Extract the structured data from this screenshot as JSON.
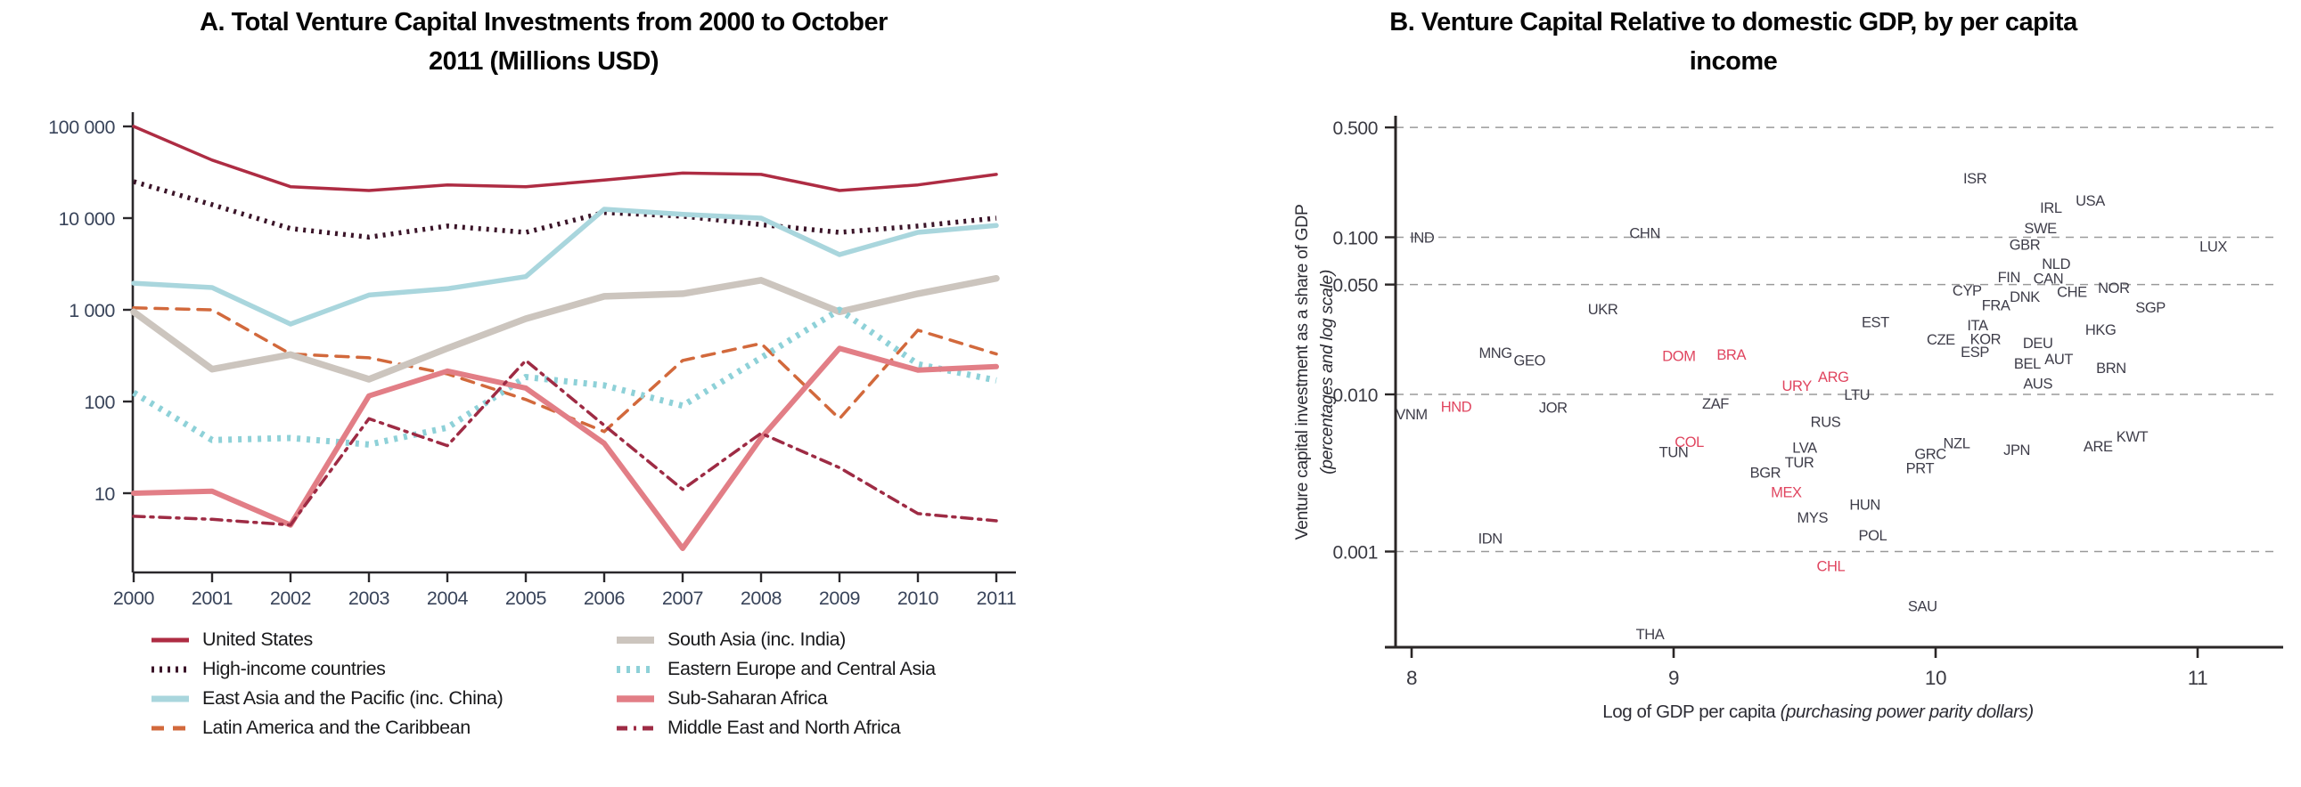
{
  "panel_a": {
    "title_line1": "A. Total Venture Capital Investments from 2000 to October",
    "title_line2": "2011 (Millions USD)",
    "y_axis": {
      "tick_labels": [
        "100 000",
        "10 000",
        "1 000",
        "100",
        "10"
      ],
      "tick_values": [
        100000,
        10000,
        1000,
        100,
        10
      ]
    },
    "x_axis": {
      "tick_labels": [
        "2000",
        "2001",
        "2002",
        "2003",
        "2004",
        "2005",
        "2006",
        "2007",
        "2008",
        "2009",
        "2010",
        "2011"
      ]
    },
    "style": {
      "axis_color": "#2a282b",
      "tick_text_color": "#39445a",
      "legend_text_color": "#19191b"
    },
    "chart_data": {
      "type": "line",
      "y_scale": "log",
      "ylim": [
        2,
        130000
      ],
      "x": [
        2000,
        2001,
        2002,
        2003,
        2004,
        2005,
        2006,
        2007,
        2008,
        2009,
        2010,
        2011
      ],
      "series": [
        {
          "name": "United States",
          "color": "#ae2c43",
          "dash": "solid",
          "width": 3.5,
          "values": [
            100000,
            43000,
            22000,
            20000,
            23000,
            22000,
            26000,
            31000,
            30000,
            20000,
            23000,
            30000
          ]
        },
        {
          "name": "High-income countries",
          "color": "#3a1428",
          "dash": "dotted",
          "width": 5.5,
          "values": [
            25000,
            14000,
            7700,
            6200,
            8200,
            7000,
            11500,
            10500,
            8500,
            7000,
            8200,
            10000
          ]
        },
        {
          "name": "East Asia and the Pacific (inc. China)",
          "color": "#a9d6dd",
          "dash": "solid",
          "width": 5.5,
          "values": [
            1950,
            1750,
            700,
            1450,
            1700,
            2300,
            12500,
            11000,
            10000,
            4000,
            7000,
            8300
          ]
        },
        {
          "name": "Latin America and the Caribbean",
          "color": "#d2693c",
          "dash": "dashed",
          "width": 3.5,
          "values": [
            1050,
            1000,
            330,
            300,
            200,
            105,
            47,
            280,
            430,
            65,
            600,
            330
          ]
        },
        {
          "name": "South Asia (inc. India)",
          "color": "#ccc5be",
          "dash": "solid",
          "width": 7.5,
          "values": [
            950,
            225,
            325,
            175,
            380,
            800,
            1400,
            1500,
            2100,
            950,
            1500,
            2200
          ]
        },
        {
          "name": "Eastern Europe and Central Asia",
          "color": "#8ed1d8",
          "dash": "dotted",
          "width": 7,
          "values": [
            125,
            38,
            40,
            34,
            52,
            185,
            150,
            90,
            300,
            1000,
            255,
            170
          ]
        },
        {
          "name": "Sub-Saharan Africa",
          "color": "#e27e86",
          "dash": "solid",
          "width": 6,
          "values": [
            10,
            10.5,
            4.5,
            115,
            215,
            140,
            35,
            2.5,
            40,
            380,
            220,
            240
          ]
        },
        {
          "name": "Middle East and North Africa",
          "color": "#9e2b44",
          "dash": "dashdot",
          "width": 3.5,
          "values": [
            5.6,
            5.2,
            4.5,
            65,
            33,
            280,
            55,
            11,
            45,
            19,
            6,
            5
          ]
        }
      ]
    },
    "legend": {
      "columns": [
        [
          0,
          1,
          2,
          3
        ],
        [
          4,
          5,
          6,
          7
        ]
      ]
    }
  },
  "panel_b": {
    "title_line1": "B. Venture Capital Relative to domestic GDP, by per capita",
    "title_line2": "income",
    "y_axis": {
      "label": "Venture capital investment as a share of GDP",
      "label_italic": "(percentages and log scale)",
      "tick_labels": [
        "0.500",
        "0.100",
        "0.050",
        "0.010",
        "0.001"
      ],
      "tick_values": [
        0.5,
        0.1,
        0.05,
        0.01,
        0.001
      ]
    },
    "x_axis": {
      "label": "Log of GDP per capita",
      "label_italic": "(purchasing power parity dollars)",
      "tick_labels": [
        "8",
        "9",
        "10",
        "11"
      ],
      "tick_values": [
        8,
        9,
        10,
        11
      ]
    },
    "style": {
      "label_color": "#3e3d49",
      "highlight_color": "#e0455f",
      "grid_color": "#9a9a9a",
      "axis_color": "#2a2626",
      "tick_text_color": "#3a3a42"
    },
    "chart_data": {
      "type": "scatter",
      "x_scale": "linear",
      "y_scale": "log",
      "x_range": [
        8,
        11.3
      ],
      "y_range": [
        0.0002,
        0.6
      ],
      "points": [
        {
          "code": "IND",
          "x": 8.04,
          "y": 0.1,
          "highlight": false
        },
        {
          "code": "CHN",
          "x": 8.89,
          "y": 0.107,
          "highlight": false
        },
        {
          "code": "UKR",
          "x": 8.73,
          "y": 0.035,
          "highlight": false
        },
        {
          "code": "MNG",
          "x": 8.32,
          "y": 0.0185,
          "highlight": false
        },
        {
          "code": "GEO",
          "x": 8.45,
          "y": 0.0165,
          "highlight": false
        },
        {
          "code": "VNM",
          "x": 8.0,
          "y": 0.0075,
          "highlight": false
        },
        {
          "code": "HND",
          "x": 8.17,
          "y": 0.0084,
          "highlight": true
        },
        {
          "code": "JOR",
          "x": 8.54,
          "y": 0.0083,
          "highlight": false
        },
        {
          "code": "IDN",
          "x": 8.3,
          "y": 0.00122,
          "highlight": false
        },
        {
          "code": "THA",
          "x": 8.91,
          "y": 0.0003,
          "highlight": false
        },
        {
          "code": "DOM",
          "x": 9.02,
          "y": 0.0176,
          "highlight": true
        },
        {
          "code": "BRA",
          "x": 9.22,
          "y": 0.018,
          "highlight": true
        },
        {
          "code": "ZAF",
          "x": 9.16,
          "y": 0.0088,
          "highlight": false
        },
        {
          "code": "COL",
          "x": 9.06,
          "y": 0.005,
          "highlight": true
        },
        {
          "code": "TUN",
          "x": 9.0,
          "y": 0.0043,
          "highlight": false
        },
        {
          "code": "URY",
          "x": 9.47,
          "y": 0.0114,
          "highlight": true
        },
        {
          "code": "ARG",
          "x": 9.61,
          "y": 0.013,
          "highlight": true
        },
        {
          "code": "LTU",
          "x": 9.7,
          "y": 0.01,
          "highlight": false
        },
        {
          "code": "RUS",
          "x": 9.58,
          "y": 0.0067,
          "highlight": false
        },
        {
          "code": "LVA",
          "x": 9.5,
          "y": 0.0046,
          "highlight": false
        },
        {
          "code": "TUR",
          "x": 9.48,
          "y": 0.0037,
          "highlight": false
        },
        {
          "code": "BGR",
          "x": 9.35,
          "y": 0.0032,
          "highlight": false
        },
        {
          "code": "MEX",
          "x": 9.43,
          "y": 0.0024,
          "highlight": true
        },
        {
          "code": "MYS",
          "x": 9.53,
          "y": 0.00165,
          "highlight": false
        },
        {
          "code": "HUN",
          "x": 9.73,
          "y": 0.002,
          "highlight": false
        },
        {
          "code": "POL",
          "x": 9.76,
          "y": 0.00127,
          "highlight": false
        },
        {
          "code": "CHL",
          "x": 9.6,
          "y": 0.00081,
          "highlight": true
        },
        {
          "code": "EST",
          "x": 9.77,
          "y": 0.029,
          "highlight": false
        },
        {
          "code": "SAU",
          "x": 9.95,
          "y": 0.00045,
          "highlight": false
        },
        {
          "code": "PRT",
          "x": 9.94,
          "y": 0.0034,
          "highlight": false
        },
        {
          "code": "GRC",
          "x": 9.98,
          "y": 0.0042,
          "highlight": false
        },
        {
          "code": "NZL",
          "x": 10.08,
          "y": 0.0049,
          "highlight": false
        },
        {
          "code": "JPN",
          "x": 10.31,
          "y": 0.00445,
          "highlight": false
        },
        {
          "code": "ARE",
          "x": 10.62,
          "y": 0.0047,
          "highlight": false
        },
        {
          "code": "KWT",
          "x": 10.75,
          "y": 0.0054,
          "highlight": false
        },
        {
          "code": "CZE",
          "x": 10.02,
          "y": 0.0224,
          "highlight": false
        },
        {
          "code": "ESP",
          "x": 10.15,
          "y": 0.0187,
          "highlight": false
        },
        {
          "code": "KOR",
          "x": 10.19,
          "y": 0.0226,
          "highlight": false
        },
        {
          "code": "ITA",
          "x": 10.16,
          "y": 0.0277,
          "highlight": false
        },
        {
          "code": "CYP",
          "x": 10.12,
          "y": 0.046,
          "highlight": false
        },
        {
          "code": "FRA",
          "x": 10.23,
          "y": 0.037,
          "highlight": false
        },
        {
          "code": "DNK",
          "x": 10.34,
          "y": 0.042,
          "highlight": false
        },
        {
          "code": "FIN",
          "x": 10.28,
          "y": 0.056,
          "highlight": false
        },
        {
          "code": "CAN",
          "x": 10.43,
          "y": 0.055,
          "highlight": false
        },
        {
          "code": "DEU",
          "x": 10.39,
          "y": 0.0213,
          "highlight": false
        },
        {
          "code": "BEL",
          "x": 10.35,
          "y": 0.0158,
          "highlight": false
        },
        {
          "code": "AUT",
          "x": 10.47,
          "y": 0.0168,
          "highlight": false
        },
        {
          "code": "AUS",
          "x": 10.39,
          "y": 0.0118,
          "highlight": false
        },
        {
          "code": "HKG",
          "x": 10.63,
          "y": 0.026,
          "highlight": false
        },
        {
          "code": "BRN",
          "x": 10.67,
          "y": 0.0148,
          "highlight": false
        },
        {
          "code": "NOR",
          "x": 10.68,
          "y": 0.048,
          "highlight": false
        },
        {
          "code": "SGP",
          "x": 10.82,
          "y": 0.036,
          "highlight": false
        },
        {
          "code": "CHE",
          "x": 10.52,
          "y": 0.045,
          "highlight": false
        },
        {
          "code": "NLD",
          "x": 10.46,
          "y": 0.068,
          "highlight": false
        },
        {
          "code": "GBR",
          "x": 10.34,
          "y": 0.09,
          "highlight": false
        },
        {
          "code": "SWE",
          "x": 10.4,
          "y": 0.115,
          "highlight": false
        },
        {
          "code": "IRL",
          "x": 10.44,
          "y": 0.155,
          "highlight": false
        },
        {
          "code": "USA",
          "x": 10.59,
          "y": 0.172,
          "highlight": false
        },
        {
          "code": "ISR",
          "x": 10.15,
          "y": 0.238,
          "highlight": false
        },
        {
          "code": "LUX",
          "x": 11.06,
          "y": 0.088,
          "highlight": false
        }
      ]
    }
  }
}
